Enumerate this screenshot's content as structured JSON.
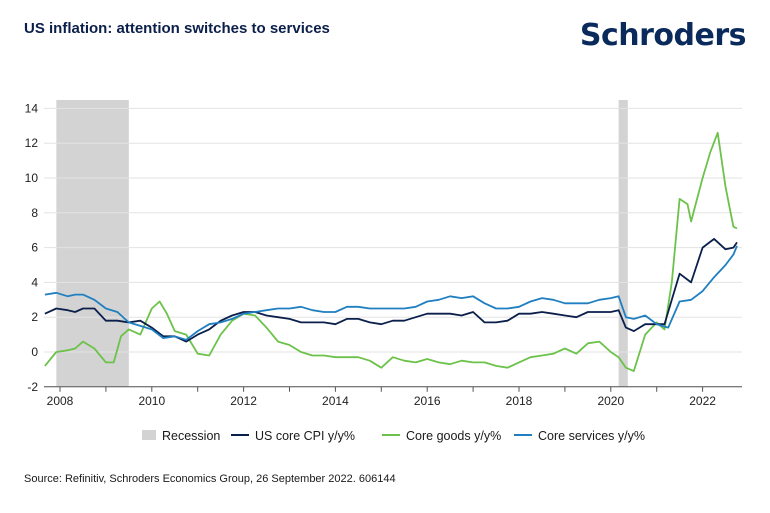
{
  "header": {
    "title": "US inflation: attention switches to services",
    "logo_text": "Schroders"
  },
  "footer": {
    "source": "Source: Refinitiv, Schroders Economics Group, 26 September 2022. 606144"
  },
  "colors": {
    "recession": "#d3d3d3",
    "core_cpi": "#0b1f4b",
    "core_goods": "#6cc24a",
    "core_services": "#1f7fc0",
    "gridline": "#e3e3e3",
    "axis": "#555555"
  },
  "chart_data": {
    "type": "line",
    "title": "US inflation: attention switches to services",
    "xlabel": "",
    "ylabel": "",
    "xlim": [
      2007.67,
      2022.75
    ],
    "ylim": [
      -2,
      14
    ],
    "yticks": [
      -2,
      0,
      2,
      4,
      6,
      8,
      10,
      12,
      14
    ],
    "xticks": [
      2008,
      2010,
      2012,
      2014,
      2016,
      2018,
      2020,
      2022
    ],
    "grid": true,
    "legend_position": "bottom",
    "recessions": [
      {
        "name": "Recession",
        "start": 2007.92,
        "end": 2009.5
      },
      {
        "name": "Recession",
        "start": 2020.17,
        "end": 2020.37
      }
    ],
    "legend": [
      "Recession",
      "US core CPI y/y%",
      "Core goods y/y%",
      "Core services y/y%"
    ],
    "series": [
      {
        "name": "US core CPI y/y%",
        "key": "core_cpi",
        "x": [
          2007.67,
          2007.92,
          2008.17,
          2008.33,
          2008.5,
          2008.75,
          2009.0,
          2009.25,
          2009.5,
          2009.75,
          2010.0,
          2010.25,
          2010.5,
          2010.75,
          2011.0,
          2011.25,
          2011.5,
          2011.75,
          2012.0,
          2012.25,
          2012.5,
          2012.75,
          2013.0,
          2013.25,
          2013.5,
          2013.75,
          2014.0,
          2014.25,
          2014.5,
          2014.75,
          2015.0,
          2015.25,
          2015.5,
          2015.75,
          2016.0,
          2016.25,
          2016.5,
          2016.75,
          2017.0,
          2017.25,
          2017.5,
          2017.75,
          2018.0,
          2018.25,
          2018.5,
          2018.75,
          2019.0,
          2019.25,
          2019.5,
          2019.75,
          2020.0,
          2020.17,
          2020.33,
          2020.5,
          2020.75,
          2021.0,
          2021.17,
          2021.33,
          2021.5,
          2021.75,
          2022.0,
          2022.25,
          2022.5,
          2022.67,
          2022.75
        ],
        "values": [
          2.2,
          2.5,
          2.4,
          2.3,
          2.5,
          2.5,
          1.8,
          1.8,
          1.7,
          1.8,
          1.4,
          0.9,
          0.9,
          0.6,
          1.0,
          1.3,
          1.8,
          2.1,
          2.3,
          2.3,
          2.1,
          2.0,
          1.9,
          1.7,
          1.7,
          1.7,
          1.6,
          1.9,
          1.9,
          1.7,
          1.6,
          1.8,
          1.8,
          2.0,
          2.2,
          2.2,
          2.2,
          2.1,
          2.3,
          1.7,
          1.7,
          1.8,
          2.2,
          2.2,
          2.3,
          2.2,
          2.1,
          2.0,
          2.3,
          2.3,
          2.3,
          2.4,
          1.4,
          1.2,
          1.6,
          1.6,
          1.6,
          3.0,
          4.5,
          4.0,
          6.0,
          6.5,
          5.9,
          6.0,
          6.3
        ]
      },
      {
        "name": "Core goods y/y%",
        "key": "core_goods",
        "x": [
          2007.67,
          2007.92,
          2008.17,
          2008.33,
          2008.5,
          2008.75,
          2009.0,
          2009.17,
          2009.33,
          2009.5,
          2009.75,
          2010.0,
          2010.17,
          2010.33,
          2010.5,
          2010.75,
          2011.0,
          2011.25,
          2011.5,
          2011.75,
          2012.0,
          2012.25,
          2012.5,
          2012.75,
          2013.0,
          2013.25,
          2013.5,
          2013.75,
          2014.0,
          2014.25,
          2014.5,
          2014.75,
          2015.0,
          2015.25,
          2015.5,
          2015.75,
          2016.0,
          2016.25,
          2016.5,
          2016.75,
          2017.0,
          2017.25,
          2017.5,
          2017.75,
          2018.0,
          2018.25,
          2018.5,
          2018.75,
          2019.0,
          2019.25,
          2019.5,
          2019.75,
          2020.0,
          2020.17,
          2020.33,
          2020.5,
          2020.75,
          2021.0,
          2021.17,
          2021.33,
          2021.5,
          2021.67,
          2021.75,
          2022.0,
          2022.17,
          2022.33,
          2022.5,
          2022.67,
          2022.75
        ],
        "values": [
          -0.8,
          0.0,
          0.1,
          0.2,
          0.6,
          0.2,
          -0.6,
          -0.6,
          0.9,
          1.3,
          1.0,
          2.5,
          2.9,
          2.2,
          1.2,
          1.0,
          -0.1,
          -0.2,
          1.0,
          1.8,
          2.2,
          2.1,
          1.4,
          0.6,
          0.4,
          0.0,
          -0.2,
          -0.2,
          -0.3,
          -0.3,
          -0.3,
          -0.5,
          -0.9,
          -0.3,
          -0.5,
          -0.6,
          -0.4,
          -0.6,
          -0.7,
          -0.5,
          -0.6,
          -0.6,
          -0.8,
          -0.9,
          -0.6,
          -0.3,
          -0.2,
          -0.1,
          0.2,
          -0.1,
          0.5,
          0.6,
          0.0,
          -0.3,
          -0.9,
          -1.1,
          1.0,
          1.7,
          1.3,
          4.0,
          8.8,
          8.5,
          7.5,
          10.0,
          11.5,
          12.6,
          9.5,
          7.2,
          7.1
        ]
      },
      {
        "name": "Core services y/y%",
        "key": "core_services",
        "x": [
          2007.67,
          2007.92,
          2008.17,
          2008.33,
          2008.5,
          2008.75,
          2009.0,
          2009.25,
          2009.5,
          2009.75,
          2010.0,
          2010.25,
          2010.5,
          2010.75,
          2011.0,
          2011.25,
          2011.5,
          2011.75,
          2012.0,
          2012.25,
          2012.5,
          2012.75,
          2013.0,
          2013.25,
          2013.5,
          2013.75,
          2014.0,
          2014.25,
          2014.5,
          2014.75,
          2015.0,
          2015.25,
          2015.5,
          2015.75,
          2016.0,
          2016.25,
          2016.5,
          2016.75,
          2017.0,
          2017.25,
          2017.5,
          2017.75,
          2018.0,
          2018.25,
          2018.5,
          2018.75,
          2019.0,
          2019.25,
          2019.5,
          2019.75,
          2020.0,
          2020.17,
          2020.33,
          2020.5,
          2020.75,
          2021.0,
          2021.25,
          2021.5,
          2021.75,
          2022.0,
          2022.25,
          2022.5,
          2022.67,
          2022.75
        ],
        "values": [
          3.3,
          3.4,
          3.2,
          3.3,
          3.3,
          3.0,
          2.5,
          2.3,
          1.7,
          1.5,
          1.3,
          0.8,
          0.9,
          0.7,
          1.2,
          1.6,
          1.7,
          1.9,
          2.2,
          2.3,
          2.4,
          2.5,
          2.5,
          2.6,
          2.4,
          2.3,
          2.3,
          2.6,
          2.6,
          2.5,
          2.5,
          2.5,
          2.5,
          2.6,
          2.9,
          3.0,
          3.2,
          3.1,
          3.2,
          2.8,
          2.5,
          2.5,
          2.6,
          2.9,
          3.1,
          3.0,
          2.8,
          2.8,
          2.8,
          3.0,
          3.1,
          3.2,
          2.0,
          1.9,
          2.1,
          1.6,
          1.4,
          2.9,
          3.0,
          3.5,
          4.3,
          5.0,
          5.6,
          6.1
        ]
      }
    ]
  }
}
